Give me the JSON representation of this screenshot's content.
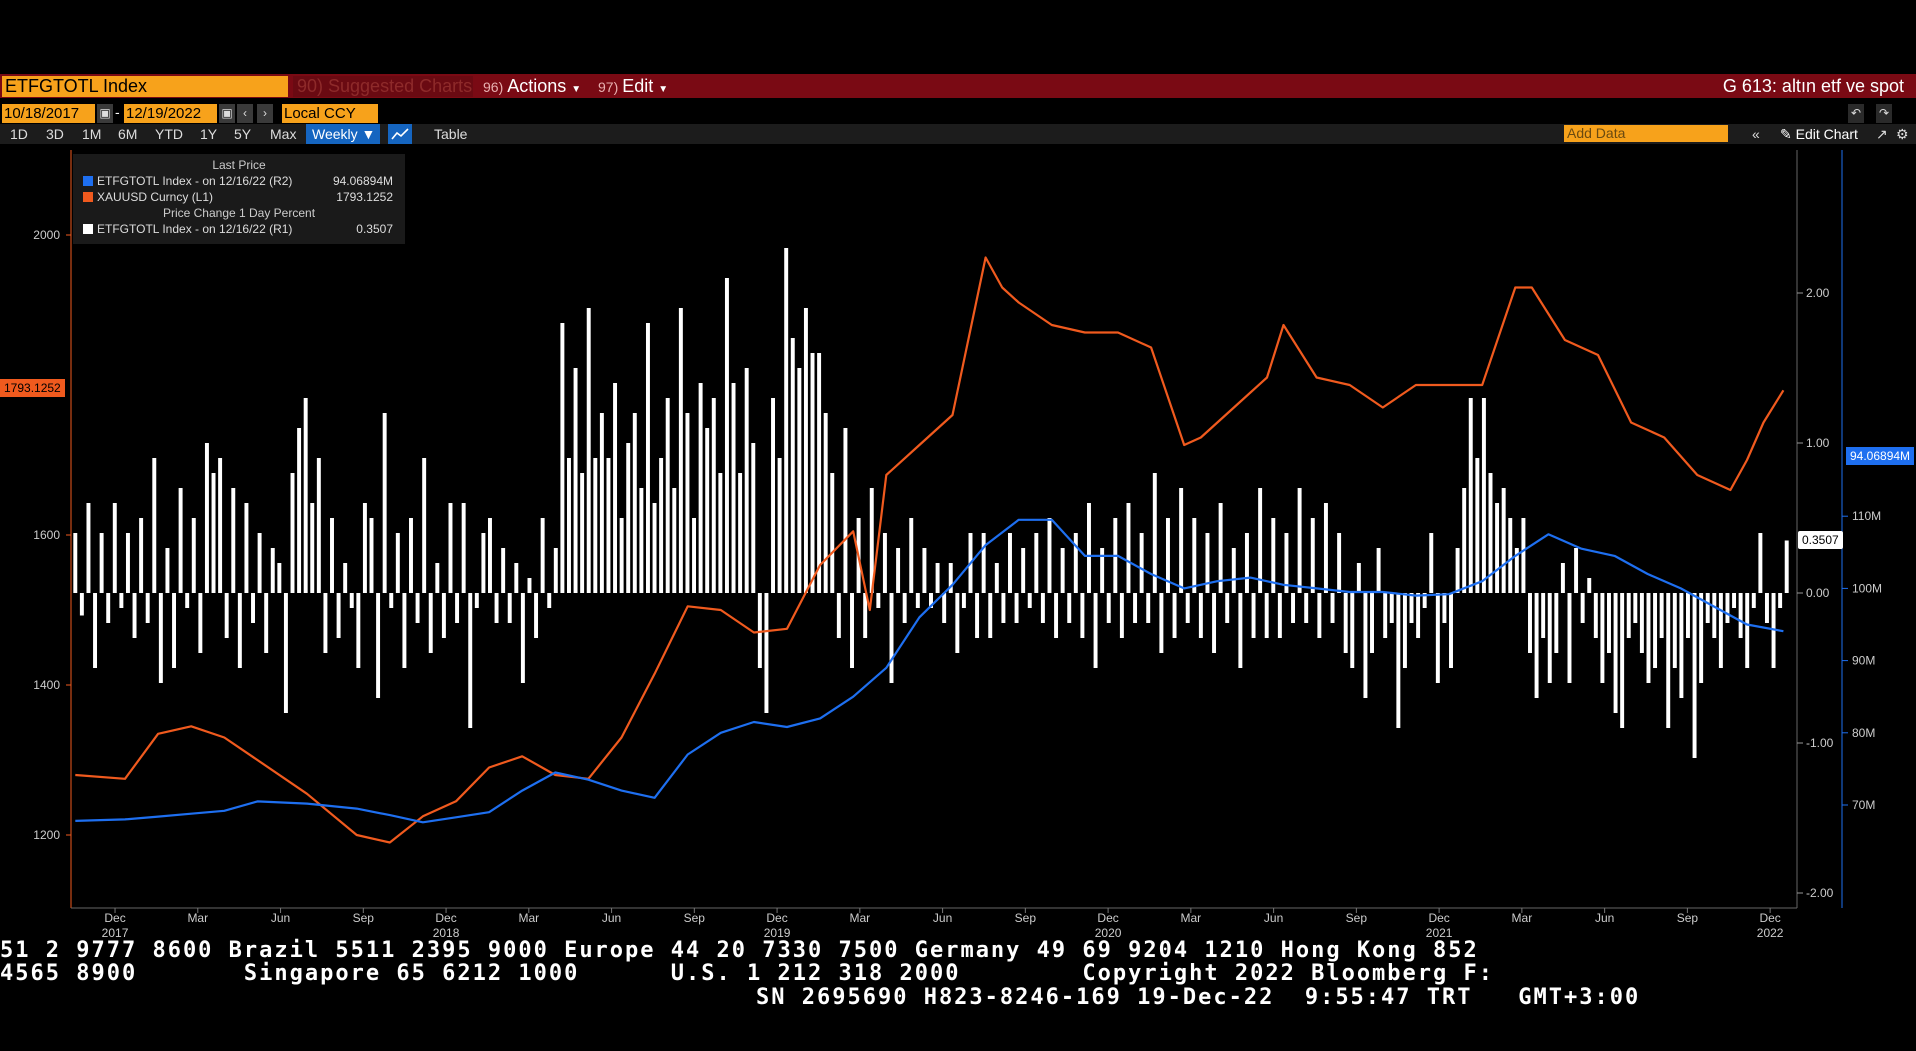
{
  "toolbar": {
    "ticker": "ETFGTOTL Index",
    "suggested": "90) Suggested Charts",
    "actions_num": "96)",
    "actions": "Actions",
    "edit_num": "97)",
    "edit": "Edit",
    "right_title": "G 613: altın etf ve spot"
  },
  "dates": {
    "start": "10/18/2017",
    "end": "12/19/2022",
    "currency": "Local CCY"
  },
  "ranges": [
    "1D",
    "3D",
    "1M",
    "6M",
    "YTD",
    "1Y",
    "5Y",
    "Max"
  ],
  "frequency": "Weekly ▼",
  "table_label": "Table",
  "add_data_placeholder": "Add Data",
  "edit_chart_label": "Edit Chart",
  "legend": {
    "header1": "Last Price",
    "row1_label": "ETFGTOTL Index -  on 12/16/22  (R2)",
    "row1_value": "94.06894M",
    "row2_label": "XAUUSD Curncy  (L1)",
    "row2_value": "1793.1252",
    "header2": "Price Change 1 Day Percent",
    "row3_label": "ETFGTOTL Index -  on 12/16/22  (R1)",
    "row3_value": "0.3507"
  },
  "colors": {
    "etf": "#1e6ff0",
    "gold": "#f05a1e",
    "bars": "#ffffff",
    "brand": "#7a0a14",
    "orange": "#f7a21b"
  },
  "value_tags": {
    "left": "1793.1252",
    "right_etf": "94.06894M",
    "right_bar": "0.3507"
  },
  "chart_data": {
    "type": "line",
    "left_axis": {
      "ticks": [
        "2000",
        "1600",
        "1400",
        "1200"
      ]
    },
    "right_axis_r2": {
      "ticks": [
        "110M",
        "100M",
        "90M",
        "80M",
        "70M"
      ]
    },
    "right_axis_r1": {
      "ticks": [
        "2.00",
        "1.00",
        "0.00",
        "-1.00",
        "-2.00"
      ]
    },
    "month_labels": [
      "Dec",
      "Mar",
      "Jun",
      "Sep",
      "Dec",
      "Mar",
      "Jun",
      "Sep",
      "Dec",
      "Mar",
      "Jun",
      "Sep",
      "Dec",
      "Mar",
      "Jun",
      "Sep",
      "Dec",
      "Mar",
      "Jun",
      "Sep",
      "Dec"
    ],
    "year_labels": [
      "2017",
      "2018",
      "2019",
      "2020",
      "2021",
      "2022"
    ],
    "series": [
      {
        "name": "XAUUSD Curncy",
        "axis": "left",
        "x": [
          2017.8,
          2017.95,
          2018.05,
          2018.15,
          2018.25,
          2018.35,
          2018.5,
          2018.65,
          2018.75,
          2018.85,
          2018.95,
          2019.05,
          2019.15,
          2019.25,
          2019.35,
          2019.45,
          2019.55,
          2019.65,
          2019.75,
          2019.85,
          2019.95,
          2020.05,
          2020.15,
          2020.2,
          2020.25,
          2020.35,
          2020.45,
          2020.55,
          2020.6,
          2020.65,
          2020.75,
          2020.85,
          2020.95,
          2021.05,
          2021.15,
          2021.2,
          2021.3,
          2021.4,
          2021.45,
          2021.55,
          2021.65,
          2021.75,
          2021.85,
          2021.95,
          2022.05,
          2022.15,
          2022.2,
          2022.3,
          2022.4,
          2022.5,
          2022.6,
          2022.7,
          2022.8,
          2022.85,
          2022.9,
          2022.96
        ],
        "values": [
          1280,
          1275,
          1335,
          1345,
          1330,
          1300,
          1255,
          1200,
          1190,
          1225,
          1245,
          1290,
          1305,
          1280,
          1275,
          1330,
          1415,
          1505,
          1500,
          1470,
          1475,
          1560,
          1605,
          1500,
          1680,
          1720,
          1760,
          1970,
          1930,
          1910,
          1880,
          1870,
          1870,
          1850,
          1720,
          1730,
          1770,
          1810,
          1880,
          1810,
          1800,
          1770,
          1800,
          1800,
          1800,
          1930,
          1930,
          1860,
          1840,
          1750,
          1730,
          1680,
          1660,
          1700,
          1750,
          1793
        ]
      },
      {
        "name": "ETFGTOTL Index",
        "axis": "right",
        "x": [
          2017.8,
          2017.95,
          2018.05,
          2018.15,
          2018.25,
          2018.35,
          2018.5,
          2018.65,
          2018.75,
          2018.85,
          2018.95,
          2019.05,
          2019.15,
          2019.25,
          2019.35,
          2019.45,
          2019.55,
          2019.65,
          2019.75,
          2019.85,
          2019.95,
          2020.05,
          2020.15,
          2020.25,
          2020.35,
          2020.45,
          2020.55,
          2020.65,
          2020.75,
          2020.85,
          2020.95,
          2021.05,
          2021.15,
          2021.25,
          2021.35,
          2021.45,
          2021.55,
          2021.65,
          2021.75,
          2021.85,
          2021.95,
          2022.05,
          2022.15,
          2022.25,
          2022.35,
          2022.45,
          2022.55,
          2022.65,
          2022.75,
          2022.85,
          2022.96
        ],
        "values": [
          67.8,
          68.0,
          68.4,
          68.8,
          69.2,
          70.5,
          70.2,
          69.5,
          68.6,
          67.6,
          68.3,
          69.0,
          72.0,
          74.5,
          73.5,
          72.0,
          71.0,
          77.0,
          80.0,
          81.5,
          80.8,
          82.0,
          85.0,
          89.0,
          96.0,
          100.5,
          106.0,
          109.5,
          109.5,
          104.5,
          104.5,
          102.0,
          100.0,
          101.0,
          101.5,
          100.5,
          100.0,
          99.5,
          99.5,
          99.0,
          99.2,
          101.0,
          104.5,
          107.5,
          105.5,
          104.5,
          102.0,
          100.0,
          97.5,
          95.0,
          94.07
        ]
      },
      {
        "name": "ETFGTOTL Index",
        "axis": "right_r1",
        "type": "bar",
        "values": [
          0.4,
          -0.15,
          0.6,
          -0.5,
          0.4,
          -0.2,
          0.6,
          -0.1,
          0.4,
          -0.3,
          0.5,
          -0.2,
          0.9,
          -0.6,
          0.3,
          -0.5,
          0.7,
          -0.1,
          0.5,
          -0.4,
          1.0,
          0.8,
          0.9,
          -0.3,
          0.7,
          -0.5,
          0.6,
          -0.2,
          0.4,
          -0.4,
          0.3,
          0.2,
          -0.8,
          0.8,
          1.1,
          1.3,
          0.6,
          0.9,
          -0.4,
          0.5,
          -0.3,
          0.2,
          -0.1,
          -0.5,
          0.6,
          0.5,
          -0.7,
          1.2,
          -0.1,
          0.4,
          -0.5,
          0.5,
          -0.2,
          0.9,
          -0.4,
          0.2,
          -0.3,
          0.6,
          -0.2,
          0.6,
          -0.9,
          -0.1,
          0.4,
          0.5,
          -0.2,
          0.3,
          -0.2,
          0.2,
          -0.6,
          0.1,
          -0.3,
          0.5,
          -0.1,
          0.3,
          1.8,
          0.9,
          1.5,
          0.8,
          1.9,
          0.9,
          1.2,
          0.9,
          1.4,
          0.5,
          1.0,
          1.2,
          0.7,
          1.8,
          0.6,
          0.9,
          1.3,
          0.7,
          1.9,
          1.2,
          0.5,
          1.4,
          1.1,
          1.3,
          0.8,
          2.1,
          1.4,
          0.8,
          1.5,
          1.0,
          -0.5,
          -0.8,
          1.3,
          0.9,
          2.3,
          1.7,
          1.5,
          1.9,
          1.6,
          1.6,
          1.2,
          0.8,
          -0.3,
          1.1,
          -0.5,
          0.5,
          -0.3,
          0.7,
          -0.1,
          0.4,
          -0.6,
          0.3,
          -0.2,
          0.5,
          -0.1,
          0.3,
          -0.1,
          0.2,
          -0.2,
          0.2,
          -0.4,
          -0.1,
          0.4,
          -0.3,
          0.4,
          -0.3,
          0.2,
          -0.2,
          0.4,
          -0.2,
          0.3,
          -0.1,
          0.4,
          -0.2,
          0.5,
          -0.3,
          0.3,
          -0.2,
          0.4,
          -0.3,
          0.6,
          -0.5,
          0.3,
          -0.2,
          0.5,
          -0.3,
          0.6,
          -0.2,
          0.4,
          -0.2,
          0.8,
          -0.4,
          0.5,
          -0.3,
          0.7,
          -0.2,
          0.5,
          -0.3,
          0.4,
          -0.4,
          0.6,
          -0.2,
          0.3,
          -0.5,
          0.4,
          -0.3,
          0.7,
          -0.3,
          0.5,
          -0.3,
          0.4,
          -0.2,
          0.7,
          -0.2,
          0.5,
          -0.3,
          0.6,
          -0.2,
          0.4,
          -0.4,
          -0.5,
          0.2,
          -0.7,
          -0.4,
          0.3,
          -0.3,
          -0.2,
          -0.9,
          -0.5,
          -0.2,
          -0.3,
          -0.1,
          0.4,
          -0.6,
          -0.2,
          -0.5,
          0.3,
          0.7,
          1.3,
          0.9,
          1.3,
          0.8,
          0.6,
          0.7,
          0.5,
          0.3,
          0.5,
          -0.4,
          -0.7,
          -0.3,
          -0.6,
          -0.4,
          0.2,
          -0.6,
          0.3,
          -0.2,
          0.1,
          -0.3,
          -0.6,
          -0.4,
          -0.8,
          -0.9,
          -0.3,
          -0.2,
          -0.4,
          -0.6,
          -0.5,
          -0.3,
          -0.9,
          -0.5,
          -0.7,
          -0.3,
          -1.1,
          -0.6,
          -0.2,
          -0.3,
          -0.5,
          -0.2,
          -0.1,
          -0.3,
          -0.5,
          -0.1,
          0.4,
          -0.2,
          -0.5,
          -0.1,
          0.35
        ]
      }
    ]
  },
  "footer": {
    "line1": "51 2 9777 8600 Brazil 5511 2395 9000 Europe 44 20 7330 7500 Germany 49 69 9204 1210 Hong Kong 852",
    "line2": "4565 8900       Singapore 65 6212 1000      U.S. 1 212 318 2000        Copyright 2022 Bloomberg F:",
    "line3": "SN 2695690 H823-8246-169 19-Dec-22  9:55:47 TRT   GMT+3:00"
  }
}
